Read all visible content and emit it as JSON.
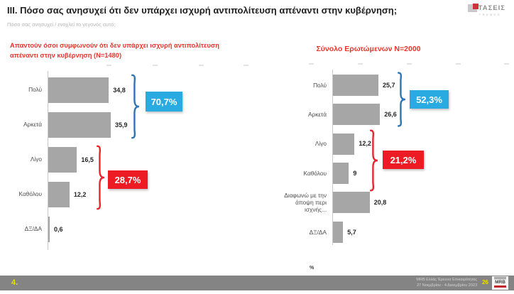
{
  "header": {
    "section": "III.",
    "title": "Πόσο σας ανησυχεί ότι δεν υπάρχει ισχυρή αντιπολίτευση απέναντι στην κυβέρνηση;",
    "subtitle": "Πόσο σας ανησυχεί / ενοχλεί το γεγονός αυτό;",
    "logo": {
      "name": "ΤΑΣΕΙΣ",
      "sub": "TRENDS"
    }
  },
  "chart_data": [
    {
      "type": "bar",
      "orientation": "horizontal",
      "title": "Απαντούν όσοι συμφωνούν ότι δεν υπάρχει ισχυρή αντιπολίτευση απέναντι στην κυβέρνηση (N=1480)",
      "categories": [
        "Πολύ",
        "Αρκετά",
        "Λίγο",
        "Καθόλου",
        "ΔΞ/ΔΑ"
      ],
      "values": [
        34.8,
        35.9,
        16.5,
        12.2,
        0.6
      ],
      "value_labels": [
        "34,8",
        "35,9",
        "16,5",
        "12,2",
        "0,6"
      ],
      "xlim": [
        0,
        40
      ],
      "bar_color": "#a6a6a6",
      "grid": false,
      "annotations": [
        {
          "label": "70,7%",
          "color": "#29abe2",
          "covers": [
            "Πολύ",
            "Αρκετά"
          ]
        },
        {
          "label": "28,7%",
          "color": "#ed1c24",
          "covers": [
            "Λίγο",
            "Καθόλου"
          ]
        }
      ]
    },
    {
      "type": "bar",
      "orientation": "horizontal",
      "title": "Σύνολο Ερωτώμενων N=2000",
      "categories": [
        "Πολύ",
        "Αρκετά",
        "Λίγο",
        "Καθόλου",
        "Διαφωνώ με την άποψη περι ισχνής...",
        "ΔΞ/ΔΑ"
      ],
      "values": [
        25.7,
        26.6,
        12.2,
        9,
        20.8,
        5.7
      ],
      "value_labels": [
        "25,7",
        "26,6",
        "12,2",
        "9",
        "20,8",
        "5,7"
      ],
      "xlim": [
        0,
        40
      ],
      "bar_color": "#a6a6a6",
      "grid": false,
      "annotations": [
        {
          "label": "52,3%",
          "color": "#29abe2",
          "covers": [
            "Πολύ",
            "Αρκετά"
          ]
        },
        {
          "label": "21,2%",
          "color": "#ed1c24",
          "covers": [
            "Λίγο",
            "Καθόλου"
          ]
        }
      ]
    }
  ],
  "axis_unit": "%",
  "footer": {
    "slide_number": "4.",
    "source_line1": "MRB Ελλάς Έρευνα Επικαιρότητας",
    "source_line2": "27 Νοεμβρίου - 4 Δεκεμβρίου 2023",
    "page_number": "26",
    "logo": "MRB"
  },
  "colors": {
    "accent_red": "#ed1c24",
    "accent_blue": "#29abe2",
    "brace_blue": "#2e75b6",
    "bar_gray": "#a6a6a6",
    "heading_red": "#e8342c",
    "footer_gray": "#848484",
    "footer_yellow": "#e8e100"
  }
}
